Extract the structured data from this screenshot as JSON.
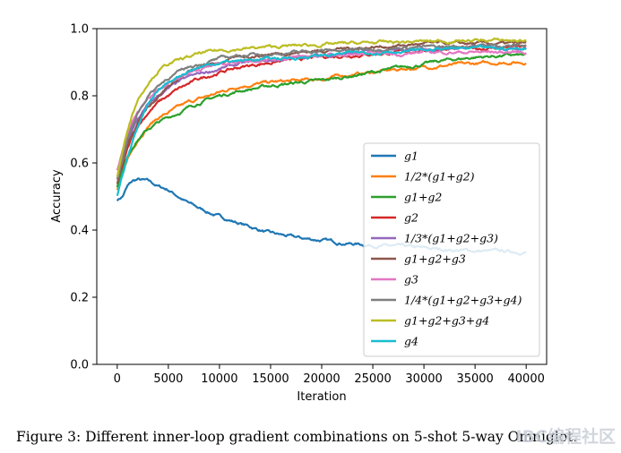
{
  "caption": "Figure 3: Different inner-loop gradient combinations on 5-shot 5-way Omniglot.",
  "watermark": "IBC编程社区",
  "chart_data": {
    "type": "line",
    "title": "",
    "xlabel": "Iteration",
    "ylabel": "Accuracy",
    "xlim": [
      -2000,
      42000
    ],
    "ylim": [
      0.0,
      1.0
    ],
    "xticks": [
      0,
      5000,
      10000,
      15000,
      20000,
      25000,
      30000,
      35000,
      40000
    ],
    "yticks": [
      0.0,
      0.2,
      0.4,
      0.6,
      0.8,
      1.0
    ],
    "xtick_labels": [
      "0",
      "5000",
      "10000",
      "15000",
      "20000",
      "25000",
      "30000",
      "35000",
      "40000"
    ],
    "ytick_labels": [
      "0.0",
      "0.2",
      "0.4",
      "0.6",
      "0.8",
      "1.0"
    ],
    "grid": false,
    "legend_position": "lower-right",
    "x": [
      0,
      500,
      1000,
      1500,
      2000,
      3000,
      4000,
      5000,
      6000,
      7000,
      8000,
      10000,
      12000,
      15000,
      18000,
      20000,
      22000,
      25000,
      28000,
      30000,
      32000,
      35000,
      38000,
      40000
    ],
    "series": [
      {
        "name": "g1",
        "color": "#1f77b4",
        "values": [
          0.49,
          0.5,
          0.53,
          0.545,
          0.55,
          0.545,
          0.53,
          0.52,
          0.5,
          0.48,
          0.465,
          0.44,
          0.42,
          0.39,
          0.375,
          0.37,
          0.362,
          0.355,
          0.35,
          0.345,
          0.342,
          0.338,
          0.336,
          0.335
        ]
      },
      {
        "name": "1/2*(g1+g2)",
        "color": "#ff7f0e",
        "values": [
          0.52,
          0.56,
          0.61,
          0.64,
          0.67,
          0.71,
          0.735,
          0.75,
          0.765,
          0.78,
          0.79,
          0.81,
          0.83,
          0.84,
          0.845,
          0.85,
          0.86,
          0.87,
          0.88,
          0.885,
          0.89,
          0.895,
          0.9,
          0.9
        ]
      },
      {
        "name": "g1+g2",
        "color": "#2ca02c",
        "values": [
          0.53,
          0.58,
          0.62,
          0.65,
          0.67,
          0.7,
          0.72,
          0.735,
          0.75,
          0.765,
          0.78,
          0.8,
          0.815,
          0.83,
          0.84,
          0.845,
          0.855,
          0.87,
          0.885,
          0.895,
          0.905,
          0.915,
          0.92,
          0.92
        ]
      },
      {
        "name": "g2",
        "color": "#d62728",
        "values": [
          0.55,
          0.59,
          0.64,
          0.68,
          0.71,
          0.75,
          0.78,
          0.8,
          0.82,
          0.835,
          0.85,
          0.87,
          0.885,
          0.9,
          0.91,
          0.915,
          0.92,
          0.925,
          0.93,
          0.935,
          0.94,
          0.94,
          0.945,
          0.945
        ]
      },
      {
        "name": "1/3*(g1+g2+g3)",
        "color": "#9467bd",
        "values": [
          0.56,
          0.61,
          0.66,
          0.7,
          0.73,
          0.77,
          0.8,
          0.82,
          0.84,
          0.855,
          0.865,
          0.88,
          0.895,
          0.905,
          0.915,
          0.92,
          0.925,
          0.93,
          0.935,
          0.94,
          0.94,
          0.945,
          0.945,
          0.945
        ]
      },
      {
        "name": "g1+g2+g3",
        "color": "#8c564b",
        "values": [
          0.54,
          0.6,
          0.65,
          0.69,
          0.72,
          0.77,
          0.8,
          0.83,
          0.85,
          0.87,
          0.88,
          0.9,
          0.915,
          0.925,
          0.93,
          0.935,
          0.94,
          0.945,
          0.95,
          0.955,
          0.955,
          0.955,
          0.955,
          0.955
        ]
      },
      {
        "name": "g3",
        "color": "#e377c2",
        "values": [
          0.58,
          0.63,
          0.68,
          0.72,
          0.75,
          0.79,
          0.82,
          0.84,
          0.855,
          0.87,
          0.88,
          0.895,
          0.905,
          0.91,
          0.915,
          0.92,
          0.92,
          0.925,
          0.925,
          0.93,
          0.93,
          0.93,
          0.93,
          0.93
        ]
      },
      {
        "name": "1/4*(g1+g2+g3+g4)",
        "color": "#7f7f7f",
        "values": [
          0.55,
          0.61,
          0.67,
          0.71,
          0.75,
          0.8,
          0.83,
          0.855,
          0.87,
          0.885,
          0.895,
          0.91,
          0.92,
          0.925,
          0.93,
          0.935,
          0.935,
          0.94,
          0.945,
          0.945,
          0.945,
          0.95,
          0.95,
          0.95
        ]
      },
      {
        "name": "g1+g2+g3+g4",
        "color": "#bcbd22",
        "values": [
          0.56,
          0.63,
          0.7,
          0.75,
          0.79,
          0.84,
          0.875,
          0.895,
          0.905,
          0.915,
          0.925,
          0.935,
          0.94,
          0.945,
          0.95,
          0.952,
          0.955,
          0.958,
          0.96,
          0.962,
          0.963,
          0.965,
          0.965,
          0.965
        ]
      },
      {
        "name": "g4",
        "color": "#17becf",
        "values": [
          0.5,
          0.56,
          0.62,
          0.67,
          0.71,
          0.77,
          0.81,
          0.84,
          0.86,
          0.875,
          0.885,
          0.9,
          0.905,
          0.91,
          0.915,
          0.92,
          0.925,
          0.93,
          0.935,
          0.935,
          0.94,
          0.94,
          0.94,
          0.94
        ]
      }
    ]
  }
}
